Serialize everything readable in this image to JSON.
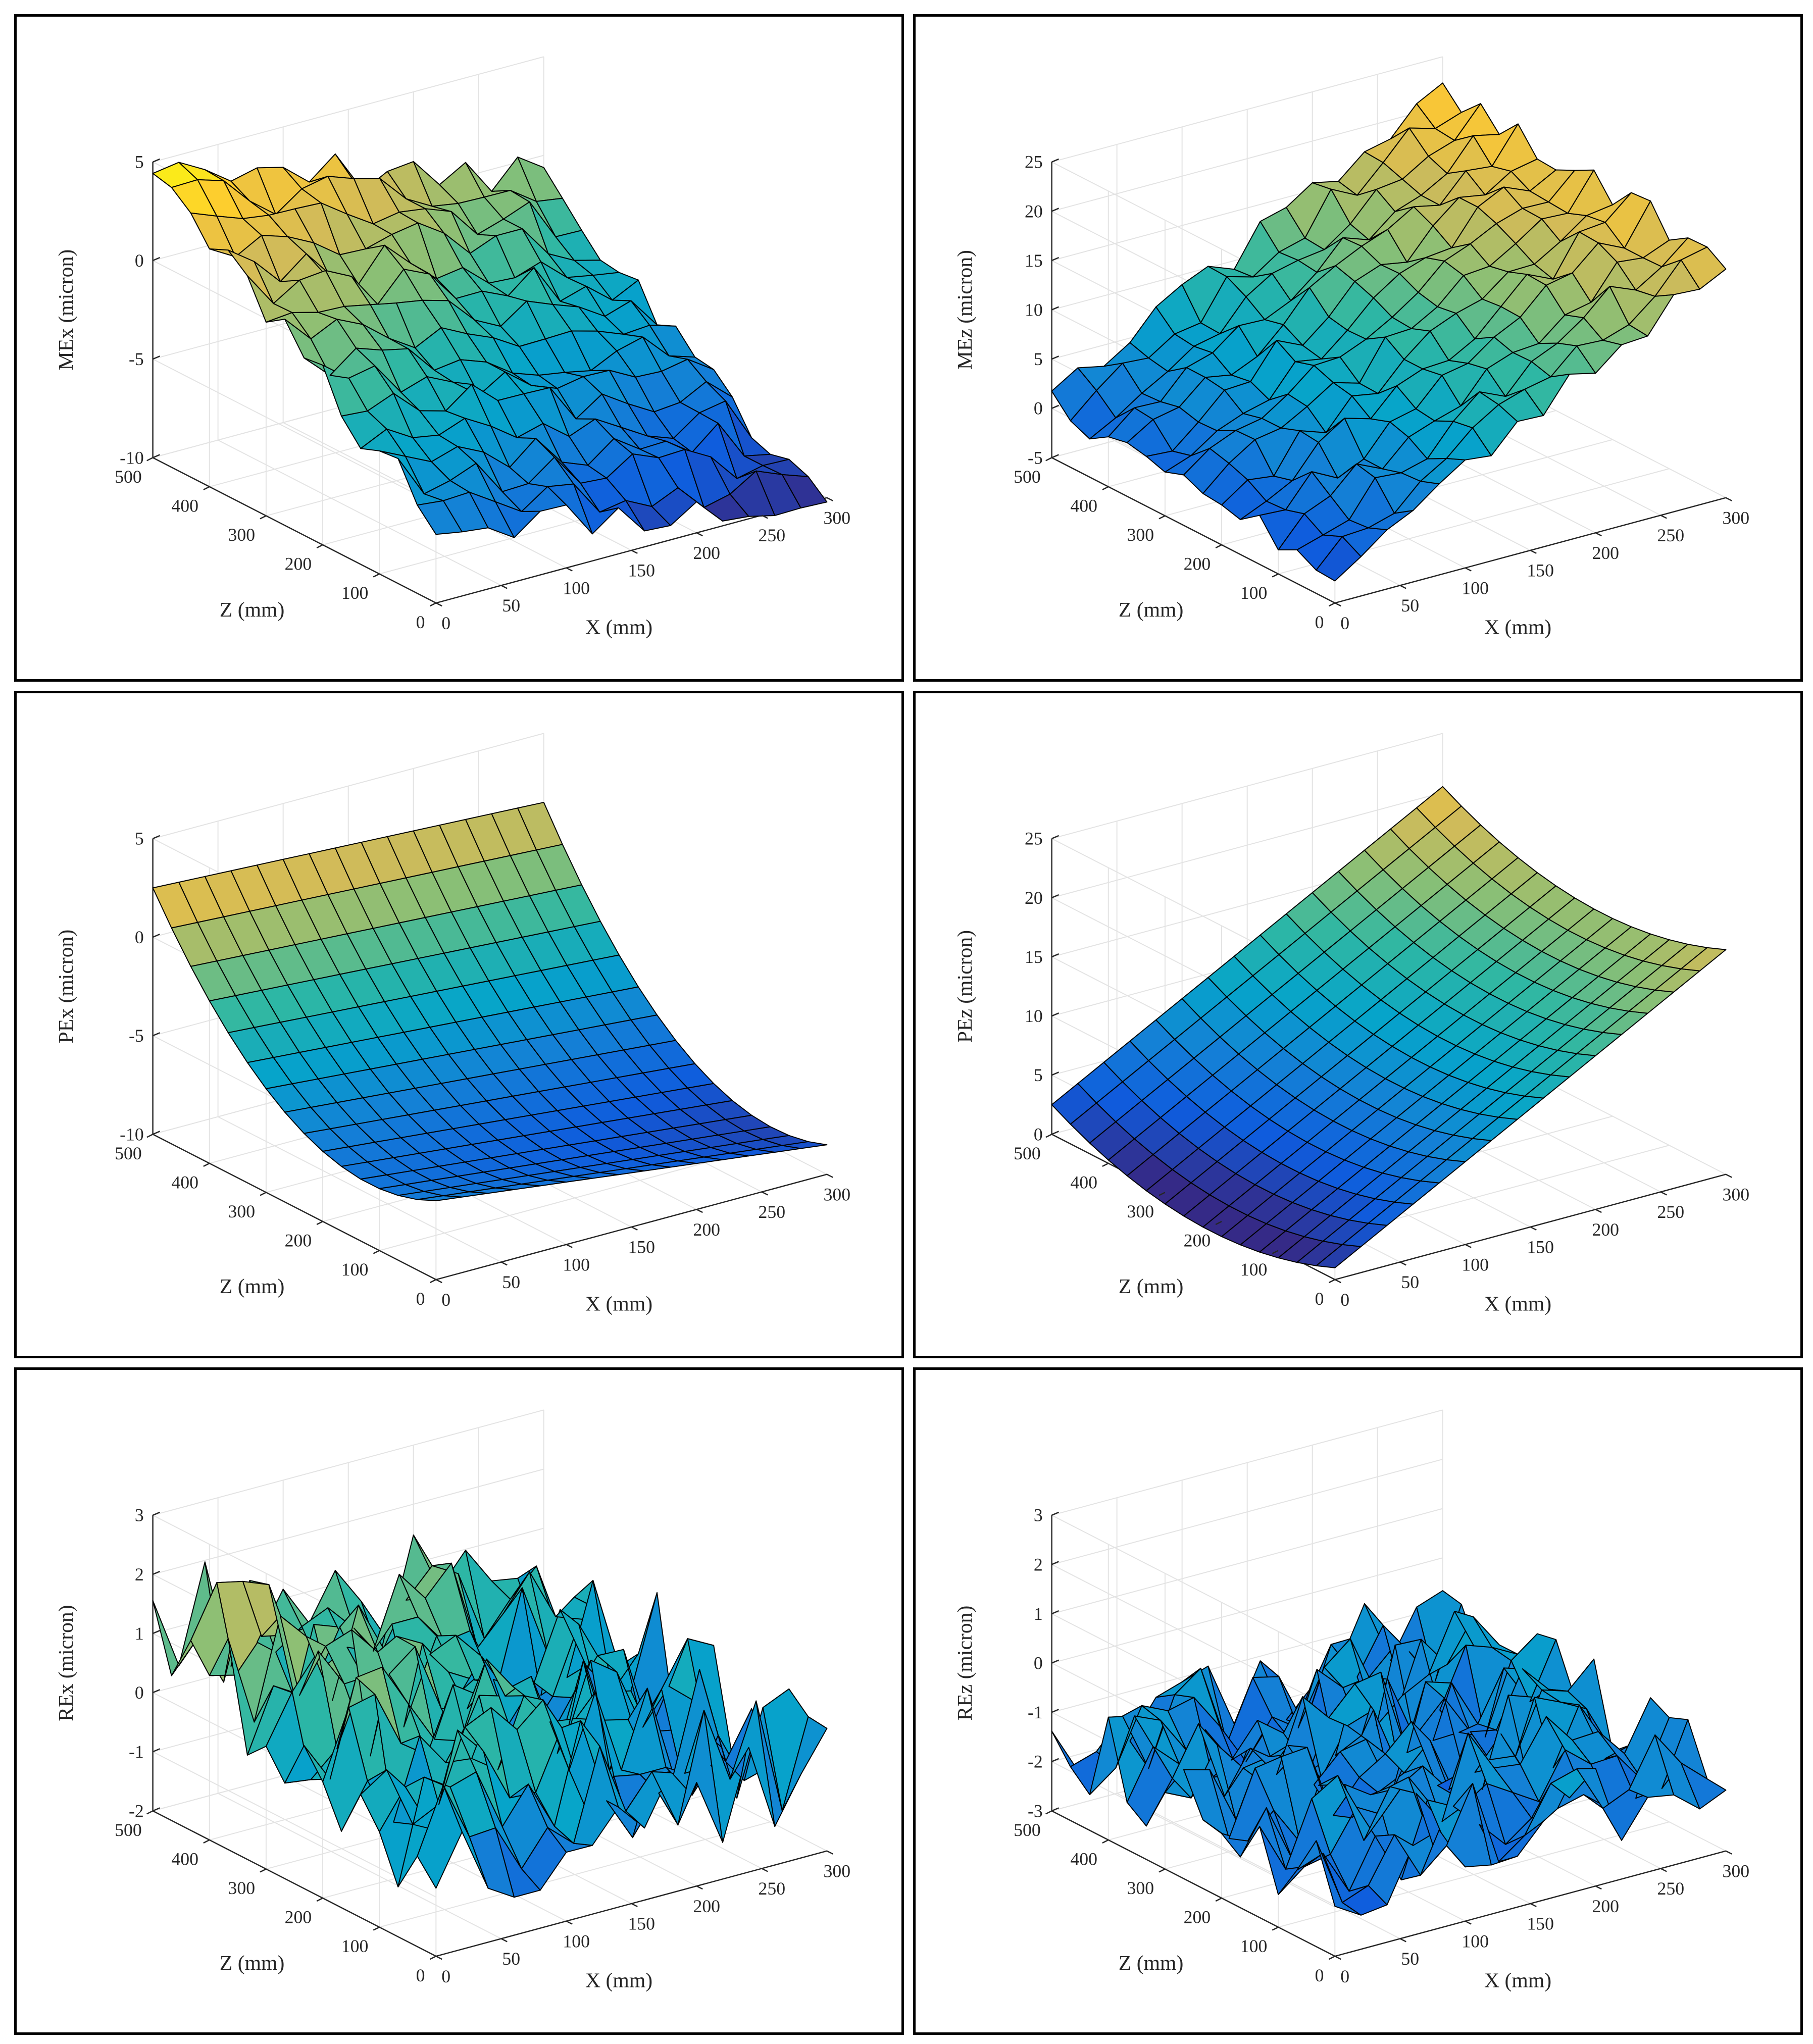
{
  "colormap": "parula",
  "colormap_stops": [
    "#352a87",
    "#0f5cdd",
    "#1481d6",
    "#06a4ca",
    "#2eb7a4",
    "#87bf77",
    "#d1bb59",
    "#fec832",
    "#f9fb0e"
  ],
  "chart_data": [
    {
      "id": "mex",
      "type": "surface",
      "zlabel": "MEx (micron)",
      "xlabel": "X (mm)",
      "ylabel": "Z (mm)",
      "xlim": [
        0,
        300
      ],
      "ylim": [
        0,
        500
      ],
      "zlim": [
        -10,
        5
      ],
      "xticks": [
        "0",
        "50",
        "100",
        "150",
        "200",
        "250",
        "300"
      ],
      "yticks": [
        "0",
        "100",
        "200",
        "300",
        "400",
        "500"
      ],
      "zticks": [
        "-10",
        "-5",
        "0",
        "5"
      ],
      "grid_x": [
        0,
        20,
        40,
        60,
        80,
        100,
        120,
        140,
        160,
        180,
        200,
        220,
        240,
        260,
        280,
        300
      ],
      "grid_z": [
        0,
        33,
        67,
        100,
        133,
        167,
        200,
        233,
        267,
        300,
        333,
        367,
        400,
        433,
        467,
        500
      ],
      "corner_values": {
        "x0_z0": -6,
        "x300_z0": -10.5,
        "x0_z500": 4.5,
        "x300_z500": -1
      },
      "curvature": 0,
      "noise_amplitude": 1.0,
      "seed": 11
    },
    {
      "id": "mez",
      "type": "surface",
      "zlabel": "MEz (micron)",
      "xlabel": "X (mm)",
      "ylabel": "Z (mm)",
      "xlim": [
        0,
        300
      ],
      "ylim": [
        0,
        500
      ],
      "zlim": [
        -5,
        25
      ],
      "xticks": [
        "0",
        "50",
        "100",
        "150",
        "200",
        "250",
        "300"
      ],
      "yticks": [
        "0",
        "100",
        "200",
        "300",
        "400",
        "500"
      ],
      "zticks": [
        "-5",
        "0",
        "5",
        "10",
        "15",
        "20",
        "25"
      ],
      "grid_x": [
        0,
        20,
        40,
        60,
        80,
        100,
        120,
        140,
        160,
        180,
        200,
        220,
        240,
        260,
        280,
        300
      ],
      "grid_z": [
        0,
        33,
        67,
        100,
        133,
        167,
        200,
        233,
        267,
        300,
        333,
        367,
        400,
        433,
        467,
        500
      ],
      "corner_values": {
        "x0_z0": -2,
        "x300_z0": 19,
        "x0_z500": 0.5,
        "x300_z500": 22
      },
      "curvature": 0,
      "noise_amplitude": 1.5,
      "seed": 23
    },
    {
      "id": "pex",
      "type": "surface",
      "zlabel": "PEx (micron)",
      "xlabel": "X (mm)",
      "ylabel": "Z (mm)",
      "xlim": [
        0,
        300
      ],
      "ylim": [
        0,
        500
      ],
      "zlim": [
        -10,
        5
      ],
      "xticks": [
        "0",
        "50",
        "100",
        "150",
        "200",
        "250",
        "300"
      ],
      "yticks": [
        "0",
        "100",
        "200",
        "300",
        "400",
        "500"
      ],
      "zticks": [
        "-10",
        "-5",
        "0",
        "5"
      ],
      "grid_x": [
        0,
        20,
        40,
        60,
        80,
        100,
        120,
        140,
        160,
        180,
        200,
        220,
        240,
        260,
        280,
        300
      ],
      "grid_z": [
        0,
        33,
        67,
        100,
        133,
        167,
        200,
        233,
        267,
        300,
        333,
        367,
        400,
        433,
        467,
        500
      ],
      "corner_values": {
        "x0_z0": -6,
        "x300_z0": -8.5,
        "x0_z500": 2.5,
        "x300_z500": 1.5
      },
      "curvature": -4,
      "noise_amplitude": 0,
      "seed": 0
    },
    {
      "id": "pez",
      "type": "surface",
      "zlabel": "PEz (micron)",
      "xlabel": "X (mm)",
      "ylabel": "Z (mm)",
      "xlim": [
        0,
        300
      ],
      "ylim": [
        0,
        500
      ],
      "zlim": [
        0,
        25
      ],
      "xticks": [
        "0",
        "50",
        "100",
        "150",
        "200",
        "250",
        "300"
      ],
      "yticks": [
        "0",
        "100",
        "200",
        "300",
        "400",
        "500"
      ],
      "zticks": [
        "0",
        "5",
        "10",
        "15",
        "20",
        "25"
      ],
      "grid_x": [
        0,
        20,
        40,
        60,
        80,
        100,
        120,
        140,
        160,
        180,
        200,
        220,
        240,
        260,
        280,
        300
      ],
      "grid_z": [
        0,
        33,
        67,
        100,
        133,
        167,
        200,
        233,
        267,
        300,
        333,
        367,
        400,
        433,
        467,
        500
      ],
      "corner_values": {
        "x0_z0": 1,
        "x300_z0": 19,
        "x0_z500": 2.5,
        "x300_z500": 20.5
      },
      "curvature": -3,
      "noise_amplitude": 0,
      "seed": 0
    },
    {
      "id": "rex",
      "type": "surface",
      "zlabel": "REx (micron)",
      "xlabel": "X (mm)",
      "ylabel": "Z (mm)",
      "xlim": [
        0,
        300
      ],
      "ylim": [
        0,
        500
      ],
      "zlim": [
        -2,
        3
      ],
      "xticks": [
        "0",
        "50",
        "100",
        "150",
        "200",
        "250",
        "300"
      ],
      "yticks": [
        "0",
        "100",
        "200",
        "300",
        "400",
        "500"
      ],
      "zticks": [
        "-2",
        "-1",
        "0",
        "1",
        "2",
        "3"
      ],
      "grid_x": [
        0,
        20,
        40,
        60,
        80,
        100,
        120,
        140,
        160,
        180,
        200,
        220,
        240,
        260,
        280,
        300
      ],
      "grid_z": [
        0,
        33,
        67,
        100,
        133,
        167,
        200,
        233,
        267,
        300,
        333,
        367,
        400,
        433,
        467,
        500
      ],
      "corner_values": {
        "x0_z0": -0.3,
        "x300_z0": -0.5,
        "x0_z500": 1.3,
        "x300_z500": 0
      },
      "curvature": 0,
      "noise_amplitude": 1.1,
      "seed": 37
    },
    {
      "id": "rez",
      "type": "surface",
      "zlabel": "REz (micron)",
      "xlabel": "X (mm)",
      "ylabel": "Z (mm)",
      "xlim": [
        0,
        300
      ],
      "ylim": [
        0,
        500
      ],
      "zlim": [
        -3,
        3
      ],
      "xticks": [
        "0",
        "50",
        "100",
        "150",
        "200",
        "250",
        "300"
      ],
      "yticks": [
        "0",
        "100",
        "200",
        "300",
        "400",
        "500"
      ],
      "zticks": [
        "-3",
        "-2",
        "-1",
        "0",
        "1",
        "2",
        "3"
      ],
      "grid_x": [
        0,
        20,
        40,
        60,
        80,
        100,
        120,
        140,
        160,
        180,
        200,
        220,
        240,
        260,
        280,
        300
      ],
      "grid_z": [
        0,
        33,
        67,
        100,
        133,
        167,
        200,
        233,
        267,
        300,
        333,
        367,
        400,
        433,
        467,
        500
      ],
      "corner_values": {
        "x0_z0": -1.5,
        "x300_z0": -1.2,
        "x0_z500": -1.5,
        "x300_z500": -1.5
      },
      "curvature": 0,
      "noise_amplitude": 1.0,
      "seed": 53
    }
  ]
}
